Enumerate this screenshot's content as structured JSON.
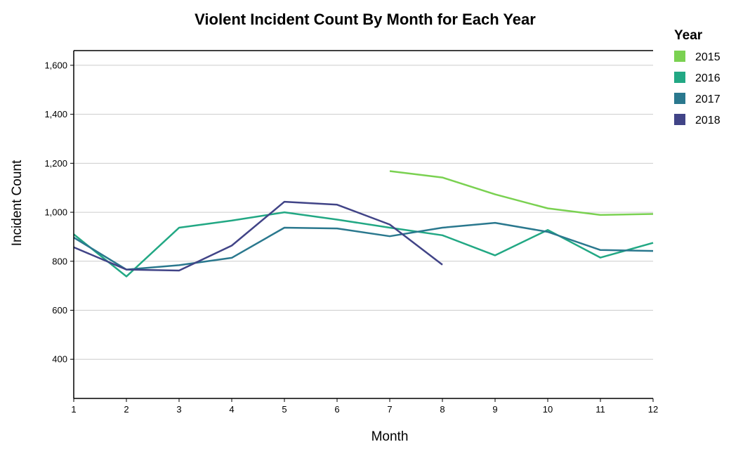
{
  "chart_data": {
    "type": "line",
    "title": "Violent Incident Count By Month for Each Year",
    "xlabel": "Month",
    "ylabel": "Incident Count",
    "xlim": [
      1,
      12
    ],
    "ylim": [
      240,
      1660
    ],
    "x_ticks": [
      1,
      2,
      3,
      4,
      5,
      6,
      7,
      8,
      9,
      10,
      11,
      12
    ],
    "y_ticks": [
      400,
      600,
      800,
      1000,
      1200,
      1400,
      1600
    ],
    "y_tick_labels": [
      "400",
      "600",
      "800",
      "1,000",
      "1,200",
      "1,400",
      "1,600"
    ],
    "grid": "horizontal",
    "legend": {
      "title": "Year",
      "placement": "top-right"
    },
    "series": [
      {
        "name": "2015",
        "color": "#7ad151",
        "x": [
          7,
          8,
          9,
          10,
          11,
          12
        ],
        "values": [
          1168,
          1142,
          1073,
          1016,
          989,
          993
        ]
      },
      {
        "name": "2016",
        "color": "#22a884",
        "x": [
          1,
          2,
          3,
          4,
          5,
          6,
          7,
          8,
          9,
          10,
          11,
          12
        ],
        "values": [
          910,
          738,
          937,
          966,
          1000,
          970,
          937,
          906,
          824,
          928,
          815,
          875
        ]
      },
      {
        "name": "2017",
        "color": "#2a788e",
        "x": [
          1,
          2,
          3,
          4,
          5,
          6,
          7,
          8,
          9,
          10,
          11,
          12
        ],
        "values": [
          897,
          766,
          784,
          814,
          937,
          934,
          902,
          937,
          957,
          920,
          846,
          842
        ]
      },
      {
        "name": "2018",
        "color": "#414487",
        "x": [
          1,
          2,
          3,
          4,
          5,
          6,
          7,
          8
        ],
        "values": [
          857,
          766,
          762,
          864,
          1043,
          1031,
          950,
          786
        ]
      }
    ]
  }
}
